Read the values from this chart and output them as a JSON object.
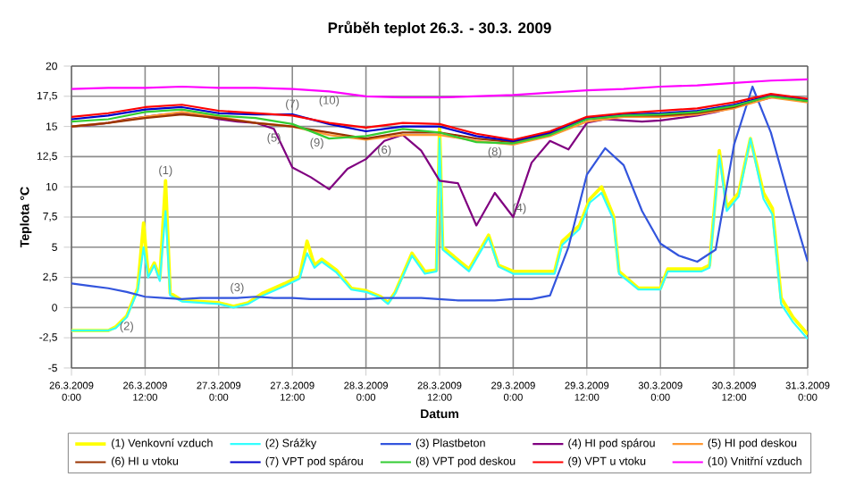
{
  "chart_data": {
    "type": "line",
    "title": "Průběh teplot 26.3. - 30.3. 2009",
    "xlabel": "Datum",
    "ylabel": "Teplota °C",
    "grid": true,
    "legend": "bottom",
    "xlim": [
      "2009-03-26T00:00",
      "2009-03-31T00:00"
    ],
    "ylim": [
      -5,
      20
    ],
    "xticks": [
      {
        "value": "2009-03-26T00:00",
        "label": "26.3.2009 0:00"
      },
      {
        "value": "2009-03-26T12:00",
        "label": "26.3.2009 12:00"
      },
      {
        "value": "2009-03-27T00:00",
        "label": "27.3.2009 0:00"
      },
      {
        "value": "2009-03-27T12:00",
        "label": "27.3.2009 12:00"
      },
      {
        "value": "2009-03-28T00:00",
        "label": "28.3.2009 0:00"
      },
      {
        "value": "2009-03-28T12:00",
        "label": "28.3.2009 12:00"
      },
      {
        "value": "2009-03-29T00:00",
        "label": "29.3.2009 0:00"
      },
      {
        "value": "2009-03-29T12:00",
        "label": "29.3.2009 12:00"
      },
      {
        "value": "2009-03-30T00:00",
        "label": "30.3.2009 0:00"
      },
      {
        "value": "2009-03-30T12:00",
        "label": "30.3.2009 12:00"
      },
      {
        "value": "2009-03-31T00:00",
        "label": "31.3.2009 0:00"
      }
    ],
    "yticks": [
      -5,
      {
        "value": -2.5,
        "label": "-2,5"
      },
      0,
      {
        "value": 2.5,
        "label": "2,5"
      },
      5,
      {
        "value": 7.5,
        "label": "7,5"
      },
      10,
      {
        "value": 12.5,
        "label": "12,5"
      },
      15,
      {
        "value": 17.5,
        "label": "17,5"
      },
      20
    ],
    "x": [
      "2009-03-26T00:00",
      "2009-03-26T06:00",
      "2009-03-26T07:12",
      "2009-03-26T09:00",
      "2009-03-26T10:48",
      "2009-03-26T11:45",
      "2009-03-26T12:30",
      "2009-03-26T13:30",
      "2009-03-26T14:24",
      "2009-03-26T15:20",
      "2009-03-26T16:05",
      "2009-03-26T18:00",
      "2009-03-27T00:00",
      "2009-03-27T02:24",
      "2009-03-27T04:48",
      "2009-03-27T07:12",
      "2009-03-27T10:48",
      "2009-03-27T13:12",
      "2009-03-27T14:24",
      "2009-03-27T15:36",
      "2009-03-27T16:48",
      "2009-03-27T19:12",
      "2009-03-27T21:36",
      "2009-03-28T00:00",
      "2009-03-28T02:24",
      "2009-03-28T03:36",
      "2009-03-28T04:48",
      "2009-03-28T07:30",
      "2009-03-28T09:36",
      "2009-03-28T11:30",
      "2009-03-28T12:00",
      "2009-03-28T12:30",
      "2009-03-28T16:48",
      "2009-03-28T20:00",
      "2009-03-28T21:36",
      "2009-03-29T00:00",
      "2009-03-29T06:45",
      "2009-03-29T08:00",
      "2009-03-29T10:48",
      "2009-03-29T12:30",
      "2009-03-29T14:24",
      "2009-03-29T16:20",
      "2009-03-29T17:15",
      "2009-03-29T20:24",
      "2009-03-30T00:00",
      "2009-03-30T01:12",
      "2009-03-30T06:45",
      "2009-03-30T08:00",
      "2009-03-30T09:36",
      "2009-03-30T10:48",
      "2009-03-30T12:45",
      "2009-03-30T14:40",
      "2009-03-30T16:48",
      "2009-03-30T18:15",
      "2009-03-30T19:40",
      "2009-03-30T21:36",
      "2009-03-31T00:00"
    ],
    "series": [
      {
        "name": "(1) Venkovní vzduch",
        "color": "#ffff00",
        "values": [
          -1.9,
          -1.9,
          -1.6,
          -0.7,
          1.6,
          7.0,
          2.7,
          3.7,
          2.4,
          10.5,
          1.2,
          0.6,
          0.4,
          0.1,
          0.4,
          1.2,
          2.0,
          2.6,
          5.5,
          3.5,
          4.0,
          3.1,
          1.6,
          1.4,
          0.9,
          0.4,
          1.3,
          4.5,
          3.0,
          3.1,
          15.0,
          5.0,
          3.2,
          6.0,
          3.5,
          3.0,
          3.0,
          5.5,
          6.8,
          9.0,
          10.0,
          7.6,
          3.0,
          1.6,
          1.6,
          3.2,
          3.2,
          3.5,
          13.0,
          8.3,
          9.5,
          14.0,
          9.5,
          8.2,
          0.8,
          -0.8,
          -2.2
        ]
      },
      {
        "name": "(2) Srážky",
        "color": "#33ffff",
        "values": [
          -1.9,
          -1.9,
          -1.7,
          -0.8,
          1.4,
          5.0,
          2.5,
          3.5,
          2.2,
          8.0,
          1.0,
          0.5,
          0.3,
          0.0,
          0.3,
          1.0,
          1.8,
          2.4,
          4.5,
          3.3,
          3.8,
          2.9,
          1.5,
          1.3,
          0.8,
          0.3,
          1.2,
          4.3,
          2.8,
          3.0,
          14.0,
          4.8,
          3.0,
          5.8,
          3.4,
          2.8,
          2.8,
          5.2,
          6.5,
          8.7,
          9.5,
          7.3,
          2.8,
          1.5,
          1.5,
          3.0,
          3.0,
          3.3,
          12.6,
          8.0,
          9.2,
          14.0,
          9.0,
          7.7,
          0.3,
          -1.2,
          -2.6
        ]
      },
      {
        "name": "(3) Plastbeton",
        "color": "#3355dd",
        "x": [
          "2009-03-26T00:00",
          "2009-03-26T03:00",
          "2009-03-26T06:00",
          "2009-03-26T09:00",
          "2009-03-26T12:00",
          "2009-03-26T15:00",
          "2009-03-26T18:00",
          "2009-03-26T21:00",
          "2009-03-27T00:00",
          "2009-03-27T03:00",
          "2009-03-27T06:00",
          "2009-03-27T09:00",
          "2009-03-27T12:00",
          "2009-03-27T15:00",
          "2009-03-27T18:00",
          "2009-03-27T21:00",
          "2009-03-28T00:00",
          "2009-03-28T03:00",
          "2009-03-28T06:00",
          "2009-03-28T09:00",
          "2009-03-28T12:00",
          "2009-03-28T15:00",
          "2009-03-28T18:00",
          "2009-03-28T21:00",
          "2009-03-29T00:00",
          "2009-03-29T03:00",
          "2009-03-29T06:00",
          "2009-03-29T09:00",
          "2009-03-29T12:00",
          "2009-03-29T15:00",
          "2009-03-29T18:00",
          "2009-03-29T21:00",
          "2009-03-30T00:00",
          "2009-03-30T03:00",
          "2009-03-30T06:00",
          "2009-03-30T09:00",
          "2009-03-30T12:00",
          "2009-03-30T15:00",
          "2009-03-30T18:00",
          "2009-03-30T21:00",
          "2009-03-31T00:00"
        ],
        "values": [
          2.0,
          1.8,
          1.6,
          1.3,
          0.9,
          0.8,
          0.7,
          0.8,
          0.8,
          0.8,
          0.9,
          0.8,
          0.8,
          0.7,
          0.7,
          0.7,
          0.7,
          0.8,
          0.8,
          0.8,
          0.7,
          0.6,
          0.6,
          0.6,
          0.7,
          0.7,
          1.0,
          5.0,
          11.0,
          13.2,
          11.8,
          8.0,
          5.3,
          4.3,
          3.8,
          4.8,
          13.5,
          18.3,
          14.5,
          9.0,
          3.8
        ]
      },
      {
        "name": "(4) HI pod spárou",
        "color": "#800080",
        "x": [
          "2009-03-26T00:00",
          "2009-03-26T03:00",
          "2009-03-26T06:00",
          "2009-03-26T09:00",
          "2009-03-26T12:00",
          "2009-03-26T15:00",
          "2009-03-26T18:00",
          "2009-03-26T21:00",
          "2009-03-27T00:00",
          "2009-03-27T03:00",
          "2009-03-27T06:00",
          "2009-03-27T09:00",
          "2009-03-27T12:00",
          "2009-03-27T15:00",
          "2009-03-27T18:00",
          "2009-03-27T21:00",
          "2009-03-28T00:00",
          "2009-03-28T03:00",
          "2009-03-28T06:00",
          "2009-03-28T09:00",
          "2009-03-28T12:00",
          "2009-03-28T15:00",
          "2009-03-28T18:00",
          "2009-03-28T21:00",
          "2009-03-29T00:00",
          "2009-03-29T03:00",
          "2009-03-29T06:00",
          "2009-03-29T09:00",
          "2009-03-29T12:00",
          "2009-03-29T15:00",
          "2009-03-29T18:00",
          "2009-03-29T21:00",
          "2009-03-30T00:00",
          "2009-03-30T03:00",
          "2009-03-30T06:00",
          "2009-03-30T09:00",
          "2009-03-30T12:00",
          "2009-03-30T15:00",
          "2009-03-30T18:00",
          "2009-03-30T21:00",
          "2009-03-31T00:00"
        ],
        "values": [
          15.0,
          15.1,
          15.3,
          15.6,
          15.8,
          16.0,
          16.1,
          15.9,
          15.6,
          15.4,
          15.3,
          14.8,
          11.6,
          10.8,
          9.8,
          11.5,
          12.3,
          13.8,
          14.3,
          13.0,
          10.5,
          10.3,
          6.8,
          9.5,
          7.5,
          12.0,
          13.8,
          13.1,
          15.3,
          15.6,
          15.5,
          15.4,
          15.5,
          15.7,
          15.9,
          16.2,
          16.6,
          17.0,
          17.4,
          17.5,
          17.1
        ]
      },
      {
        "name": "(5) HI pod deskou",
        "color": "#ff9933",
        "x": [
          "2009-03-26T00:00",
          "2009-03-26T06:00",
          "2009-03-26T12:00",
          "2009-03-26T18:00",
          "2009-03-27T00:00",
          "2009-03-27T06:00",
          "2009-03-27T12:00",
          "2009-03-27T18:00",
          "2009-03-28T00:00",
          "2009-03-28T06:00",
          "2009-03-28T12:00",
          "2009-03-28T18:00",
          "2009-03-29T00:00",
          "2009-03-29T06:00",
          "2009-03-29T12:00",
          "2009-03-29T18:00",
          "2009-03-30T00:00",
          "2009-03-30T06:00",
          "2009-03-30T12:00",
          "2009-03-30T18:00",
          "2009-03-31T00:00"
        ],
        "values": [
          15.0,
          15.3,
          15.8,
          16.2,
          15.8,
          15.3,
          15.0,
          14.3,
          13.9,
          14.3,
          14.3,
          13.8,
          13.5,
          14.2,
          15.4,
          15.8,
          15.8,
          16.0,
          16.5,
          17.4,
          17.0
        ]
      },
      {
        "name": "(6) HI u vtoku",
        "color": "#993300",
        "x": [
          "2009-03-26T00:00",
          "2009-03-26T06:00",
          "2009-03-26T12:00",
          "2009-03-26T18:00",
          "2009-03-27T00:00",
          "2009-03-27T06:00",
          "2009-03-27T12:00",
          "2009-03-27T18:00",
          "2009-03-28T00:00",
          "2009-03-28T06:00",
          "2009-03-28T12:00",
          "2009-03-28T18:00",
          "2009-03-29T00:00",
          "2009-03-29T06:00",
          "2009-03-29T12:00",
          "2009-03-29T18:00",
          "2009-03-30T00:00",
          "2009-03-30T06:00",
          "2009-03-30T12:00",
          "2009-03-30T18:00",
          "2009-03-31T00:00"
        ],
        "values": [
          15.0,
          15.3,
          15.7,
          16.0,
          15.7,
          15.3,
          15.0,
          14.5,
          14.0,
          14.5,
          14.5,
          14.0,
          13.7,
          14.4,
          15.6,
          15.9,
          15.9,
          16.1,
          16.6,
          17.6,
          17.1
        ]
      },
      {
        "name": "(7) VPT pod spárou",
        "color": "#0000cc",
        "x": [
          "2009-03-26T00:00",
          "2009-03-26T06:00",
          "2009-03-26T12:00",
          "2009-03-26T18:00",
          "2009-03-27T00:00",
          "2009-03-27T06:00",
          "2009-03-27T12:00",
          "2009-03-27T18:00",
          "2009-03-28T00:00",
          "2009-03-28T06:00",
          "2009-03-28T12:00",
          "2009-03-28T18:00",
          "2009-03-29T00:00",
          "2009-03-29T06:00",
          "2009-03-29T12:00",
          "2009-03-29T18:00",
          "2009-03-30T00:00",
          "2009-03-30T06:00",
          "2009-03-30T12:00",
          "2009-03-30T18:00",
          "2009-03-31T00:00"
        ],
        "values": [
          15.6,
          15.9,
          16.4,
          16.6,
          16.1,
          16.0,
          16.0,
          15.2,
          14.6,
          15.0,
          15.0,
          14.2,
          13.8,
          14.5,
          15.7,
          16.0,
          16.1,
          16.3,
          16.8,
          17.6,
          17.2
        ]
      },
      {
        "name": "(8) VPT pod deskou",
        "color": "#33cc33",
        "x": [
          "2009-03-26T00:00",
          "2009-03-26T06:00",
          "2009-03-26T12:00",
          "2009-03-26T18:00",
          "2009-03-27T00:00",
          "2009-03-27T06:00",
          "2009-03-27T12:00",
          "2009-03-27T18:00",
          "2009-03-28T00:00",
          "2009-03-28T06:00",
          "2009-03-28T12:00",
          "2009-03-28T18:00",
          "2009-03-29T00:00",
          "2009-03-29T06:00",
          "2009-03-29T12:00",
          "2009-03-29T18:00",
          "2009-03-30T00:00",
          "2009-03-30T06:00",
          "2009-03-30T12:00",
          "2009-03-30T18:00",
          "2009-03-31T00:00"
        ],
        "values": [
          15.4,
          15.6,
          16.2,
          16.4,
          15.9,
          15.7,
          15.2,
          14.0,
          14.2,
          14.8,
          14.5,
          13.7,
          13.6,
          14.3,
          15.6,
          15.9,
          16.0,
          16.2,
          16.7,
          17.5,
          17.1
        ]
      },
      {
        "name": "(9) VPT u vtoku",
        "color": "#ff0000",
        "x": [
          "2009-03-26T00:00",
          "2009-03-26T06:00",
          "2009-03-26T12:00",
          "2009-03-26T18:00",
          "2009-03-27T00:00",
          "2009-03-27T06:00",
          "2009-03-27T12:00",
          "2009-03-27T18:00",
          "2009-03-28T00:00",
          "2009-03-28T06:00",
          "2009-03-28T12:00",
          "2009-03-28T18:00",
          "2009-03-29T00:00",
          "2009-03-29T06:00",
          "2009-03-29T12:00",
          "2009-03-29T18:00",
          "2009-03-30T00:00",
          "2009-03-30T06:00",
          "2009-03-30T12:00",
          "2009-03-30T18:00",
          "2009-03-31T00:00"
        ],
        "values": [
          15.8,
          16.1,
          16.6,
          16.8,
          16.3,
          16.1,
          15.9,
          15.3,
          14.9,
          15.3,
          15.2,
          14.4,
          13.9,
          14.6,
          15.8,
          16.1,
          16.3,
          16.5,
          17.0,
          17.7,
          17.3
        ]
      },
      {
        "name": "(10) Vnitřní vzduch",
        "color": "#ff00ff",
        "x": [
          "2009-03-26T00:00",
          "2009-03-26T06:00",
          "2009-03-26T12:00",
          "2009-03-26T18:00",
          "2009-03-27T00:00",
          "2009-03-27T06:00",
          "2009-03-27T12:00",
          "2009-03-27T18:00",
          "2009-03-28T00:00",
          "2009-03-28T06:00",
          "2009-03-28T12:00",
          "2009-03-28T18:00",
          "2009-03-29T00:00",
          "2009-03-29T06:00",
          "2009-03-29T12:00",
          "2009-03-29T18:00",
          "2009-03-30T00:00",
          "2009-03-30T06:00",
          "2009-03-30T12:00",
          "2009-03-30T18:00",
          "2009-03-31T00:00"
        ],
        "values": [
          18.1,
          18.2,
          18.2,
          18.3,
          18.2,
          18.2,
          18.1,
          17.9,
          17.5,
          17.4,
          17.4,
          17.5,
          17.6,
          17.8,
          18.0,
          18.1,
          18.3,
          18.4,
          18.6,
          18.8,
          18.9
        ]
      }
    ],
    "annotations": [
      {
        "text": "(1)",
        "x": "2009-03-26T15:20",
        "y": 10.5
      },
      {
        "text": "(2)",
        "x": "2009-03-26T09:00",
        "y": -0.8
      },
      {
        "text": "(3)",
        "x": "2009-03-27T03:00",
        "y": 0.8
      },
      {
        "text": "(4)",
        "x": "2009-03-29T01:00",
        "y": 9.0
      },
      {
        "text": "(5)",
        "x": "2009-03-27T09:00",
        "y": 14.8
      },
      {
        "text": "(6)",
        "x": "2009-03-28T03:00",
        "y": 13.8
      },
      {
        "text": "(7)",
        "x": "2009-03-27T12:00",
        "y": 16.0
      },
      {
        "text": "(8)",
        "x": "2009-03-28T21:00",
        "y": 13.65
      },
      {
        "text": "(9)",
        "x": "2009-03-27T16:00",
        "y": 14.4
      },
      {
        "text": "(10)",
        "x": "2009-03-27T18:00",
        "y": 17.9
      }
    ]
  }
}
